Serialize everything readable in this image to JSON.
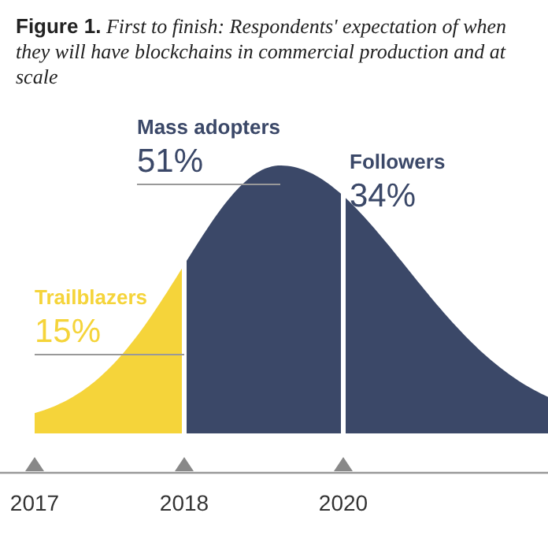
{
  "chart_data": {
    "type": "other",
    "title": "Figure 1. First to finish: Respondents' expectation of when they will have blockchains in commercial production and at scale",
    "categories": [
      "Trailblazers",
      "Mass adopters",
      "Followers"
    ],
    "values": [
      15,
      51,
      34
    ],
    "value_labels": [
      "15%",
      "51%",
      "34%"
    ],
    "colors": [
      "#f5d43a",
      "#3b4868",
      "#3b4868"
    ],
    "annotations": [
      "2017",
      "2018",
      "2020"
    ]
  }
}
